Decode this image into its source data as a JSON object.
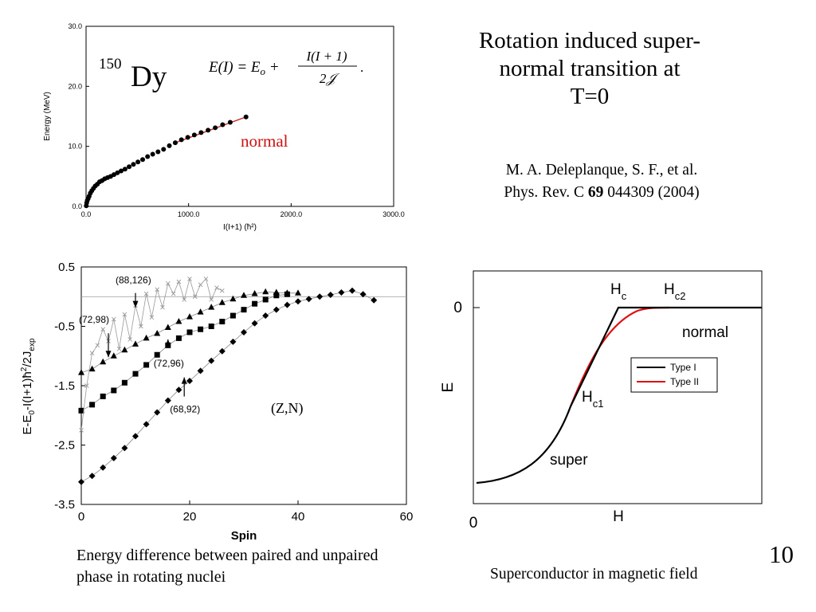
{
  "slide": {
    "title": "Rotation induced super-normal transition at T=0",
    "title_lines": [
      "Rotation induced super-",
      "normal transition at",
      "T=0"
    ],
    "reference": {
      "line1": "M. A. Deleplanque, S. F., et al.",
      "line2_pre": "Phys. Rev. C ",
      "line2_vol": "69",
      "line2_post": " 044309 (2004)"
    },
    "caption_left": "Energy difference between paired and unpaired phase in rotating nuclei",
    "caption_right": "Superconductor in magnetic field",
    "page_number": "10"
  },
  "chart_data": [
    {
      "type": "scatter",
      "nucleus_mass": "150",
      "nucleus_symbol": "Dy",
      "formula": "E(I) = E_o + I(I+1)/2J.",
      "annotation": "normal",
      "xlabel": "I(I+1) (ħ²)",
      "ylabel": "Energy (MeV)",
      "xlim": [
        0,
        3000
      ],
      "ylim": [
        0,
        30
      ],
      "x_ticks": [
        "0.0",
        "1000.0",
        "2000.0",
        "3000.0"
      ],
      "y_ticks": [
        "0.0",
        "10.0",
        "20.0",
        "30.0"
      ],
      "colors": {
        "points": "#000000",
        "fit_line": "#cc2222",
        "annotation": "#cc1111"
      },
      "points": [
        [
          2,
          0.1
        ],
        [
          6,
          0.6
        ],
        [
          12,
          1.0
        ],
        [
          20,
          1.3
        ],
        [
          30,
          1.7
        ],
        [
          42,
          2.2
        ],
        [
          56,
          2.6
        ],
        [
          72,
          3.0
        ],
        [
          90,
          3.4
        ],
        [
          110,
          3.7
        ],
        [
          132,
          4.1
        ],
        [
          156,
          4.3
        ],
        [
          182,
          4.6
        ],
        [
          210,
          4.8
        ],
        [
          240,
          5.0
        ],
        [
          272,
          5.3
        ],
        [
          306,
          5.6
        ],
        [
          342,
          5.9
        ],
        [
          380,
          6.2
        ],
        [
          420,
          6.6
        ],
        [
          462,
          7.0
        ],
        [
          506,
          7.4
        ],
        [
          552,
          7.8
        ],
        [
          600,
          8.3
        ],
        [
          650,
          8.7
        ],
        [
          702,
          9.1
        ],
        [
          756,
          9.5
        ],
        [
          812,
          10.1
        ],
        [
          870,
          10.6
        ],
        [
          930,
          11.1
        ],
        [
          992,
          11.5
        ],
        [
          1056,
          11.9
        ],
        [
          1122,
          12.3
        ],
        [
          1190,
          12.7
        ],
        [
          1260,
          13.1
        ],
        [
          1332,
          13.6
        ],
        [
          1406,
          14.0
        ],
        [
          1560,
          14.9
        ]
      ],
      "fit_segment": [
        [
          870,
          10.6
        ],
        [
          1560,
          14.9
        ]
      ]
    },
    {
      "type": "line",
      "xlabel": "Spin",
      "ylabel": "E-E0-I(I+1)ħ²/2Jexp",
      "xlim": [
        0,
        60
      ],
      "ylim": [
        -3.5,
        0.5
      ],
      "x_ticks": [
        "0",
        "20",
        "40",
        "60"
      ],
      "y_ticks": [
        "0.5",
        "-0.5",
        "-1.5",
        "-2.5",
        "-3.5"
      ],
      "legend_text": "(Z,N)",
      "series": [
        {
          "name": "(72,98)",
          "marker": "triangle",
          "points": [
            [
              0,
              -1.28
            ],
            [
              2,
              -1.22
            ],
            [
              4,
              -1.1
            ],
            [
              6,
              -1.0
            ],
            [
              8,
              -0.9
            ],
            [
              10,
              -0.8
            ],
            [
              12,
              -0.7
            ],
            [
              14,
              -0.62
            ],
            [
              16,
              -0.52
            ],
            [
              18,
              -0.42
            ],
            [
              20,
              -0.34
            ],
            [
              22,
              -0.26
            ],
            [
              24,
              -0.18
            ],
            [
              26,
              -0.1
            ],
            [
              28,
              -0.04
            ],
            [
              30,
              0.02
            ],
            [
              32,
              0.05
            ],
            [
              34,
              0.08
            ],
            [
              36,
              0.07
            ],
            [
              38,
              0.06
            ],
            [
              40,
              0.06
            ]
          ]
        },
        {
          "name": "(72,96)",
          "marker": "square",
          "points": [
            [
              0,
              -1.92
            ],
            [
              2,
              -1.82
            ],
            [
              4,
              -1.68
            ],
            [
              6,
              -1.58
            ],
            [
              8,
              -1.45
            ],
            [
              10,
              -1.3
            ],
            [
              12,
              -1.15
            ],
            [
              14,
              -0.98
            ],
            [
              16,
              -0.82
            ],
            [
              18,
              -0.7
            ],
            [
              20,
              -0.6
            ],
            [
              22,
              -0.55
            ],
            [
              24,
              -0.5
            ],
            [
              26,
              -0.42
            ],
            [
              28,
              -0.32
            ],
            [
              30,
              -0.22
            ],
            [
              32,
              -0.12
            ],
            [
              34,
              -0.05
            ],
            [
              36,
              0.02
            ],
            [
              38,
              0.04
            ]
          ]
        },
        {
          "name": "(68,92)",
          "marker": "diamond",
          "points": [
            [
              0,
              -3.12
            ],
            [
              2,
              -3.02
            ],
            [
              4,
              -2.88
            ],
            [
              6,
              -2.72
            ],
            [
              8,
              -2.55
            ],
            [
              10,
              -2.35
            ],
            [
              12,
              -2.15
            ],
            [
              14,
              -1.95
            ],
            [
              16,
              -1.75
            ],
            [
              18,
              -1.57
            ],
            [
              20,
              -1.42
            ],
            [
              22,
              -1.25
            ],
            [
              24,
              -1.08
            ],
            [
              26,
              -0.92
            ],
            [
              28,
              -0.76
            ],
            [
              30,
              -0.6
            ],
            [
              32,
              -0.45
            ],
            [
              34,
              -0.32
            ],
            [
              36,
              -0.22
            ],
            [
              38,
              -0.14
            ],
            [
              40,
              -0.08
            ],
            [
              42,
              -0.04
            ],
            [
              44,
              0.0
            ],
            [
              46,
              0.03
            ],
            [
              48,
              0.07
            ],
            [
              50,
              0.1
            ],
            [
              52,
              0.04
            ],
            [
              54,
              -0.06
            ]
          ]
        },
        {
          "name": "(88,126)",
          "marker": "cross",
          "points": [
            [
              0,
              -2.25
            ],
            [
              1,
              -1.5
            ],
            [
              2,
              -0.95
            ],
            [
              3,
              -0.82
            ],
            [
              4,
              -0.55
            ],
            [
              5,
              -0.75
            ],
            [
              6,
              -0.38
            ],
            [
              7,
              -0.88
            ],
            [
              8,
              -0.3
            ],
            [
              9,
              -0.72
            ],
            [
              10,
              -0.15
            ],
            [
              11,
              -0.5
            ],
            [
              12,
              0.05
            ],
            [
              13,
              -0.35
            ],
            [
              14,
              0.12
            ],
            [
              15,
              -0.18
            ],
            [
              16,
              0.22
            ],
            [
              17,
              0.05
            ],
            [
              18,
              0.25
            ],
            [
              19,
              -0.05
            ],
            [
              20,
              0.3
            ],
            [
              21,
              0.0
            ],
            [
              22,
              0.2
            ],
            [
              23,
              0.3
            ],
            [
              24,
              -0.05
            ],
            [
              25,
              0.15
            ],
            [
              26,
              0.1
            ]
          ]
        }
      ],
      "annotations": [
        {
          "text": "(88,126)",
          "arrow_to": [
            10,
            -0.18
          ]
        },
        {
          "text": "(72,98)",
          "arrow_to": [
            5,
            -1.02
          ]
        },
        {
          "text": "(72,96)",
          "arrow_to": [
            16,
            -0.72
          ]
        },
        {
          "text": "(68,92)",
          "arrow_to": [
            19,
            -1.36
          ]
        }
      ]
    },
    {
      "type": "line",
      "xlabel": "H",
      "ylabel": "E",
      "origin_x_label": "0",
      "origin_y_label": "0",
      "labels": {
        "hc": "H",
        "hc_sub": "c",
        "hc2": "H",
        "hc2_sub": "c2",
        "hc1": "H",
        "hc1_sub": "c1",
        "normal": "normal",
        "super": "super"
      },
      "legend": [
        {
          "name": "Type I",
          "color": "#000000"
        },
        {
          "name": "Type II",
          "color": "#dd1111"
        }
      ],
      "legend_position": "right"
    }
  ]
}
